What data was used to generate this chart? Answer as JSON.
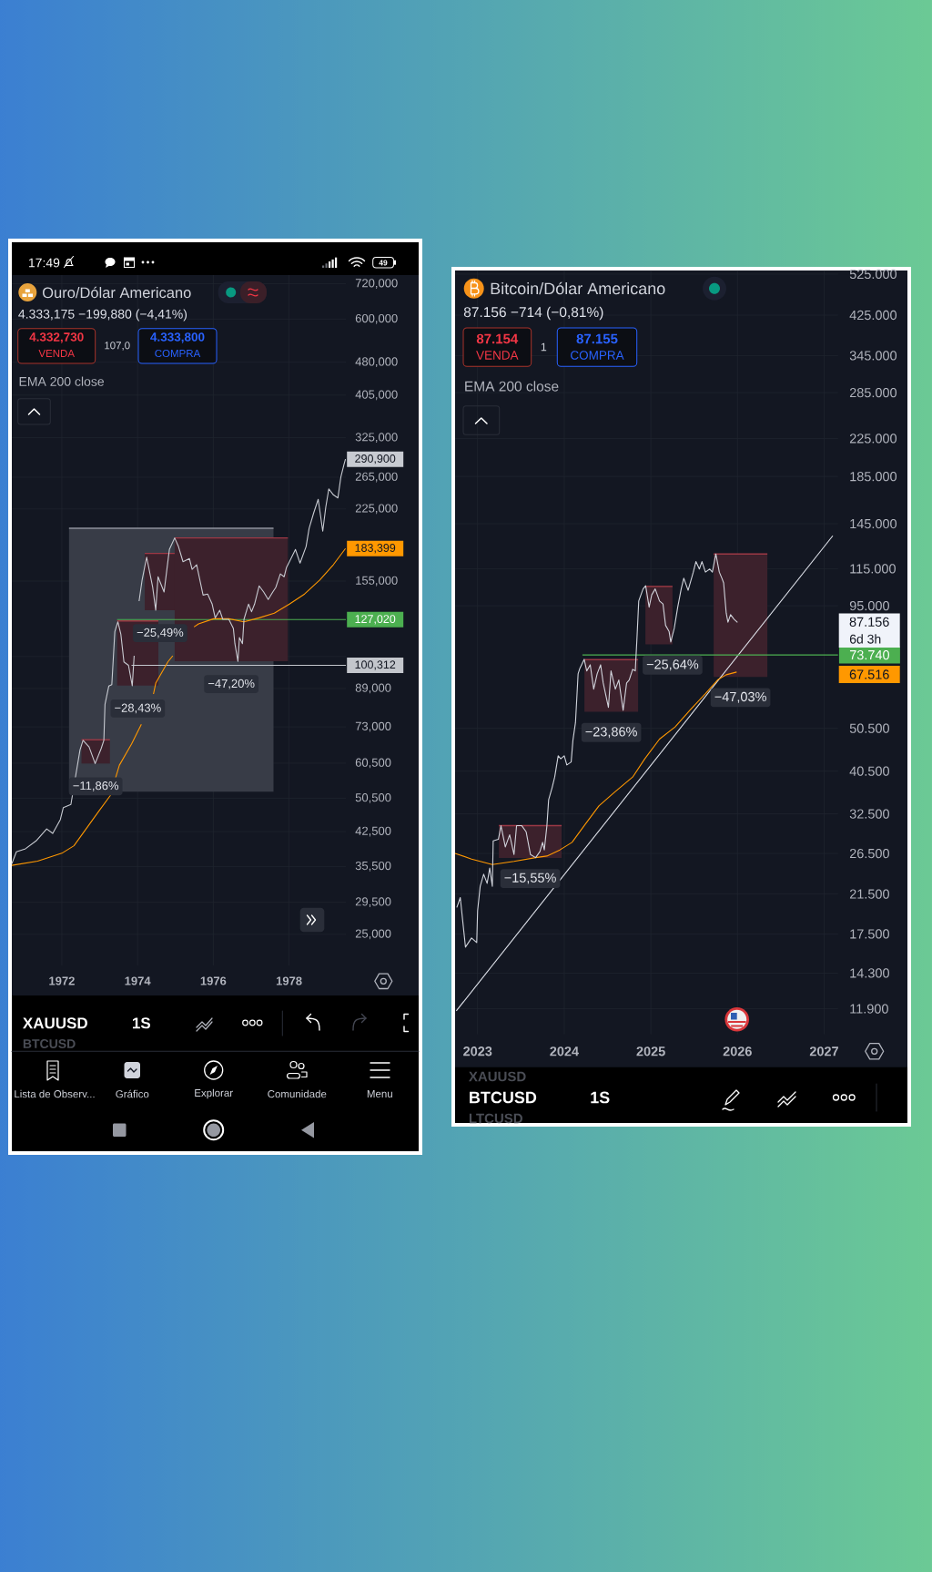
{
  "chart_data": [
    {
      "type": "line",
      "title": "Ouro/Dólar Americano",
      "subtitle": "4.333,175 −199,880 (−4,41%)",
      "xlim": [
        1970.68,
        1979.5
      ],
      "xticks": [
        1972,
        1974,
        1976,
        1978
      ],
      "ylim": [
        21.29,
        753.3
      ],
      "yticks": [
        {
          "value": 25,
          "label": "25,000"
        },
        {
          "value": 29.5,
          "label": "29,500"
        },
        {
          "value": 35.5,
          "label": "35,500"
        },
        {
          "value": 42.5,
          "label": "42,500"
        },
        {
          "value": 50.5,
          "label": "50,500"
        },
        {
          "value": 60.5,
          "label": "60,500"
        },
        {
          "value": 73,
          "label": "73,000"
        },
        {
          "value": 89,
          "label": "89,000"
        },
        {
          "value": 105,
          "label": null
        },
        {
          "value": 155,
          "label": "155,000"
        },
        {
          "value": 225,
          "label": "225,000"
        },
        {
          "value": 265,
          "label": "265,000"
        },
        {
          "value": 325,
          "label": "325,000"
        },
        {
          "value": 405,
          "label": "405,000"
        },
        {
          "value": 480,
          "label": "480,000"
        },
        {
          "value": 600,
          "label": "600,000"
        },
        {
          "value": 720,
          "label": "720,000"
        }
      ],
      "grid": true,
      "log": true,
      "series": [
        {
          "color": "#8f929c",
          "x": [
            1972.19,
            1977.59
          ],
          "values": [
            203.6,
            203.6
          ],
          "lower": [
            52.2,
            52.2
          ],
          "upper": [
            203.6,
            203.6
          ]
        },
        {
          "color": "#9c3845",
          "x": [
            1972.52,
            1973.27
          ],
          "values": [
            68.3,
            68.3
          ],
          "lower": [
            60.4,
            60.4
          ],
          "upper": [
            68.3,
            68.3
          ]
        },
        {
          "color": "#9c3845",
          "x": [
            1973.46,
            1974.55
          ],
          "values": [
            126.2,
            126.2
          ],
          "lower": [
            90.3,
            90.3
          ],
          "upper": [
            126.2,
            126.2
          ]
        },
        {
          "color": "#9c3845",
          "x": [
            1974.19,
            1975.0
          ],
          "values": [
            178.8,
            178.8
          ],
          "lower": [
            133.3,
            133.3
          ],
          "upper": [
            178.8,
            178.8
          ]
        },
        {
          "color": "#9c3845",
          "x": [
            1974.98,
            1977.97
          ],
          "values": [
            193.7,
            193.7
          ],
          "lower": [
            102.4,
            102.4
          ],
          "upper": [
            193.7,
            193.7
          ]
        },
        {
          "color": "#4caf50",
          "x": [
            1973.46,
            1979.5
          ],
          "values": [
            127.02,
            127.02
          ],
          "value_labels": [
            null,
            "127,020"
          ]
        },
        {
          "color": "#c3c6cc",
          "x": [
            1973.84,
            1979.5
          ],
          "values": [
            100.312,
            100.312
          ],
          "value_labels": [
            null,
            "100,312"
          ]
        },
        {
          "color": "#ff9800",
          "x": [
            1970.68,
            1971.36,
            1972.0,
            1972.32,
            1972.64,
            1972.96,
            1973.28,
            1973.52,
            1973.84,
            1974.1,
            1974.16,
            1974.42,
            1974.48,
            1974.8,
            1974.93,
            1975.2,
            1975.49,
            1975.61,
            1976.01,
            1976.41,
            1976.81,
            1977.21,
            1977.61,
            1978.01,
            1978.41,
            1978.81,
            1979.17,
            1979.49
          ],
          "values": [
            35.7,
            36.5,
            38.0,
            39.5,
            43.1,
            47.0,
            51.2,
            59.9,
            66.8,
            74.0,
            null,
            86.5,
            91.5,
            102.1,
            105.4,
            null,
            122.3,
            124.3,
            127.6,
            127.6,
            125.6,
            128.2,
            131.3,
            137.6,
            145.0,
            155.9,
            168.7,
            183.399
          ],
          "value_labels": [
            null,
            null,
            null,
            null,
            null,
            null,
            null,
            null,
            null,
            null,
            null,
            null,
            null,
            null,
            null,
            null,
            null,
            null,
            null,
            null,
            null,
            null,
            null,
            null,
            null,
            null,
            null,
            "183,399"
          ]
        },
        {
          "color": "#c8cbd2",
          "x": [
            1970.68,
            1970.8,
            1971.04,
            1971.32,
            1971.6,
            1971.76,
            1971.96,
            1972.04,
            1972.24,
            1972.36,
            1972.48,
            1972.56,
            1972.72,
            1972.88,
            1973.04,
            1973.11,
            1973.14,
            1973.24,
            1973.32,
            1973.4,
            1973.48,
            1973.56,
            1973.64,
            1973.76,
            1973.86,
            1973.91,
            1973.99,
            1974.04,
            1974.12,
            1974.24,
            1974.4,
            1974.48,
            1974.54,
            1974.7,
            1974.77,
            1974.84,
            1974.98,
            1975.08,
            1975.2,
            1975.37,
            1975.44,
            1975.56,
            1975.73,
            1975.85,
            1975.97,
            1976.05,
            1976.17,
            1976.25,
            1976.41,
            1976.53,
            1976.57,
            1976.65,
            1976.69,
            1976.77,
            1976.81,
            1976.93,
            1977.01,
            1977.09,
            1977.21,
            1977.33,
            1977.45,
            1977.57,
            1977.65,
            1977.77,
            1977.87,
            1977.93,
            1978.01,
            1978.17,
            1978.29,
            1978.45,
            1978.53,
            1978.65,
            1978.77,
            1978.89,
            1978.97,
            1979.05,
            1979.17,
            1979.29,
            1979.37,
            1979.45,
            1979.49
          ],
          "values": [
            36.0,
            38.3,
            38.9,
            40.5,
            43.1,
            42.1,
            45.2,
            48.1,
            48.9,
            56.3,
            64.8,
            68.1,
            65.8,
            60.4,
            65.3,
            68.1,
            82.0,
            90.1,
            90.8,
            119.5,
            125.6,
            117.6,
            102.1,
            100.3,
            90.3,
            105.4,
            null,
            139.8,
            155.9,
            175.4,
            150.0,
            133.3,
            158.5,
            146.5,
            163.5,
            182.5,
            193.7,
            185.3,
            171.3,
            174.1,
            164.7,
            168.7,
            144.2,
            145.0,
            137.6,
            128.2,
            133.3,
            127.2,
            127.2,
            121.3,
            112.2,
            102.4,
            115.8,
            112.2,
            127.2,
            137.6,
            132.3,
            137.6,
            151.2,
            146.5,
            140.9,
            146.5,
            150.0,
            160.9,
            158.5,
            166.1,
            171.3,
            182.5,
            170.1,
            185.3,
            203.6,
            220.3,
            236.4,
            200.5,
            227.2,
            249.6,
            242.0,
            238.2,
            265.9,
            283.0,
            290.9
          ],
          "value_labels": [
            null,
            null,
            null,
            null,
            null,
            null,
            null,
            null,
            null,
            null,
            null,
            null,
            null,
            null,
            null,
            null,
            null,
            null,
            null,
            null,
            null,
            null,
            null,
            null,
            null,
            null,
            null,
            null,
            null,
            null,
            null,
            null,
            null,
            null,
            null,
            null,
            null,
            null,
            null,
            null,
            null,
            null,
            null,
            null,
            null,
            null,
            null,
            null,
            null,
            null,
            null,
            null,
            null,
            null,
            null,
            null,
            null,
            null,
            null,
            null,
            null,
            null,
            null,
            null,
            null,
            null,
            null,
            null,
            null,
            null,
            null,
            null,
            null,
            null,
            null,
            null,
            null,
            null,
            null,
            null,
            "290,900"
          ]
        }
      ],
      "annotations": [
        "17:49",
        "49",
        "4.332,730",
        "VENDA",
        "107,0",
        "4.333,800",
        "COMPRA",
        "EMA 200 close",
        "XAUUSD",
        "1S",
        "BTCUSD",
        "Lista de Observ...",
        "Gráfico",
        "Explorar",
        "Comunidade",
        "Menu",
        {
          "text": "−11,86%",
          "x": 1972.895,
          "y": 60.4
        },
        {
          "text": "−28,43%",
          "x": 1974.005,
          "y": 90.3
        },
        {
          "text": "−25,49%",
          "x": 1974.595,
          "y": 133.3
        },
        {
          "text": "−47,20%",
          "x": 1976.475,
          "y": 102.4
        }
      ]
    },
    {
      "type": "line",
      "title": "Bitcoin/Dólar Americano",
      "subtitle": "87.156 −714 (−0,81%)",
      "xlim": [
        2022.74,
        2027.16
      ],
      "xticks": [
        2023,
        2024,
        2025,
        2026,
        2027
      ],
      "ylim": [
        10430,
        535000
      ],
      "yticks": [
        {
          "value": 11900,
          "label": "11.900"
        },
        {
          "value": 14300,
          "label": "14.300"
        },
        {
          "value": 17500,
          "label": "17.500"
        },
        {
          "value": 21500,
          "label": "21.500"
        },
        {
          "value": 26500,
          "label": "26.500"
        },
        {
          "value": 32500,
          "label": "32.500"
        },
        {
          "value": 40500,
          "label": "40.500"
        },
        {
          "value": 50500,
          "label": "50.500"
        },
        {
          "value": 95000,
          "label": "95.000"
        },
        {
          "value": 115000,
          "label": "115.000"
        },
        {
          "value": 145000,
          "label": "145.000"
        },
        {
          "value": 185000,
          "label": "185.000"
        },
        {
          "value": 225000,
          "label": "225.000"
        },
        {
          "value": 285000,
          "label": "285.000"
        },
        {
          "value": 345000,
          "label": "345.000"
        },
        {
          "value": 425000,
          "label": "425.000"
        },
        {
          "value": 525000,
          "label": "525.000"
        }
      ],
      "grid": true,
      "log": true,
      "series": [
        {
          "color": "#9c3845",
          "x": [
            2023.245,
            2023.97
          ],
          "values": [
            30580,
            30580
          ],
          "lower": [
            25900,
            25900
          ],
          "upper": [
            30580,
            30580
          ]
        },
        {
          "color": "#9c3845",
          "x": [
            2024.233,
            2024.853
          ],
          "values": [
            72000,
            72000
          ],
          "lower": [
            54990,
            54990
          ],
          "upper": [
            72000,
            72000
          ]
        },
        {
          "color": "#9c3845",
          "x": [
            2024.937,
            2025.25
          ],
          "values": [
            104960,
            104960
          ],
          "lower": [
            77830,
            77830
          ],
          "upper": [
            104960,
            104960
          ]
        },
        {
          "color": "#9c3845",
          "x": [
            2025.725,
            2026.345
          ],
          "values": [
            124100,
            124100
          ],
          "lower": [
            65850,
            65850
          ],
          "upper": [
            124100,
            124100
          ]
        },
        {
          "color": "#e0e3eb",
          "x": [
            2022.754,
            2027.1
          ],
          "values": [
            11770,
            136300
          ]
        },
        {
          "color": "#4caf50",
          "x": [
            2024.21,
            2027.16
          ],
          "values": [
            73740,
            73740
          ],
          "value_labels": [
            null,
            "73.740"
          ]
        },
        {
          "color": "#ff9800",
          "x": [
            2022.74,
            2022.93,
            2023.17,
            2023.42,
            2023.67,
            2023.8,
            2023.95,
            2024.09,
            2024.23,
            2024.4,
            2024.58,
            2024.79,
            2024.93,
            2025.1,
            2025.28,
            2025.45,
            2025.63,
            2025.77,
            2025.87,
            2025.99
          ],
          "values": [
            26520,
            25750,
            25030,
            25430,
            25940,
            26150,
            26990,
            28060,
            30580,
            33860,
            36330,
            39290,
            43160,
            47770,
            50860,
            55430,
            60400,
            64810,
            66570,
            67516
          ]
        },
        {
          "color": "#d1d4dc",
          "x": [
            2022.76,
            2022.8,
            2022.86,
            2022.93,
            2022.99,
            2023.0,
            2023.03,
            2023.07,
            2023.11,
            2023.14,
            2023.17,
            2023.18,
            2023.24,
            2023.27,
            2023.32,
            2023.37,
            2023.42,
            2023.45,
            2023.51,
            2023.56,
            2023.61,
            2023.67,
            2023.72,
            2023.75,
            2023.77,
            2023.8,
            2023.82,
            2023.86,
            2023.89,
            2023.93,
            2023.96,
            2024.0,
            2024.03,
            2024.08,
            2024.1,
            2024.13,
            2024.16,
            2024.18,
            2024.23,
            2024.26,
            2024.3,
            2024.34,
            2024.38,
            2024.42,
            2024.45,
            2024.51,
            2024.54,
            2024.59,
            2024.63,
            2024.68,
            2024.72,
            2024.75,
            2024.79,
            2024.82,
            2024.84,
            2024.86,
            2024.91,
            2024.94,
            2024.98,
            2025.01,
            2025.05,
            2025.1,
            2025.14,
            2025.17,
            2025.21,
            2025.23,
            2025.27,
            2025.31,
            2025.35,
            2025.38,
            2025.43,
            2025.49,
            2025.52,
            2025.56,
            2025.59,
            2025.63,
            2025.68,
            2025.71,
            2025.75,
            2025.79,
            2025.82,
            2025.84,
            2025.87,
            2025.89,
            2025.92,
            2025.96,
            2026.0
          ],
          "values": [
            20060,
            21110,
            16350,
            17140,
            16740,
            19730,
            22370,
            23810,
            22710,
            24570,
            22370,
            28280,
            28500,
            30580,
            27410,
            29170,
            26360,
            30580,
            30580,
            29640,
            26360,
            25940,
            26770,
            28060,
            26990,
            30580,
            34940,
            37190,
            39290,
            43830,
            43160,
            43830,
            41820,
            42470,
            47410,
            52070,
            66880,
            68780,
            72090,
            67920,
            70090,
            61830,
            66880,
            70090,
            63810,
            56290,
            67920,
            61830,
            64810,
            55430,
            63810,
            64810,
            68460,
            67920,
            80690,
            97370,
            103600,
            105300,
            94340,
            100500,
            103600,
            97370,
            95870,
            85880,
            83270,
            78810,
            84560,
            94340,
            103600,
            109500,
            102900,
            113000,
            119300,
            114800,
            119300,
            113000,
            114800,
            113000,
            124100,
            113000,
            109500,
            106900,
            91460,
            87270,
            90740,
            88640,
            87156
          ]
        }
      ],
      "annotations": [
        "87.154",
        "VENDA",
        "1",
        "87.155",
        "COMPRA",
        "EMA 200 close",
        "6d 3h",
        "XAUUSD",
        "BTCUSD",
        "1S",
        "LTCUSD",
        "87.156",
        "67.516",
        {
          "text": "−15,55%",
          "x": 2023.6075,
          "y": 25900
        },
        {
          "text": "−23,86%",
          "x": 2024.543,
          "y": 54990
        },
        {
          "text": "−25,64%",
          "x": 2025.25,
          "y": 77830
        },
        {
          "text": "−47,03%",
          "x": 2026.035,
          "y": 65850
        }
      ]
    }
  ]
}
